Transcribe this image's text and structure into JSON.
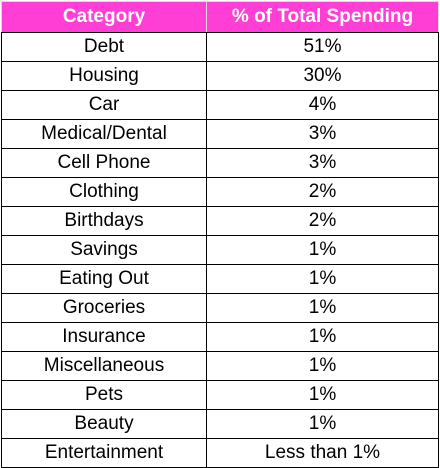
{
  "chart_data": {
    "type": "table",
    "columns": [
      "Category",
      "% of Total Spending"
    ],
    "rows": [
      [
        "Debt",
        "51%"
      ],
      [
        "Housing",
        "30%"
      ],
      [
        "Car",
        "4%"
      ],
      [
        "Medical/Dental",
        "3%"
      ],
      [
        "Cell Phone",
        "3%"
      ],
      [
        "Clothing",
        "2%"
      ],
      [
        "Birthdays",
        "2%"
      ],
      [
        "Savings",
        "1%"
      ],
      [
        "Eating Out",
        "1%"
      ],
      [
        "Groceries",
        "1%"
      ],
      [
        "Insurance",
        "1%"
      ],
      [
        "Miscellaneous",
        "1%"
      ],
      [
        "Pets",
        "1%"
      ],
      [
        "Beauty",
        "1%"
      ],
      [
        "Entertainment",
        "Less than 1%"
      ]
    ],
    "header_color": "#ff3ed6",
    "header_text_color": "#ffffff"
  }
}
